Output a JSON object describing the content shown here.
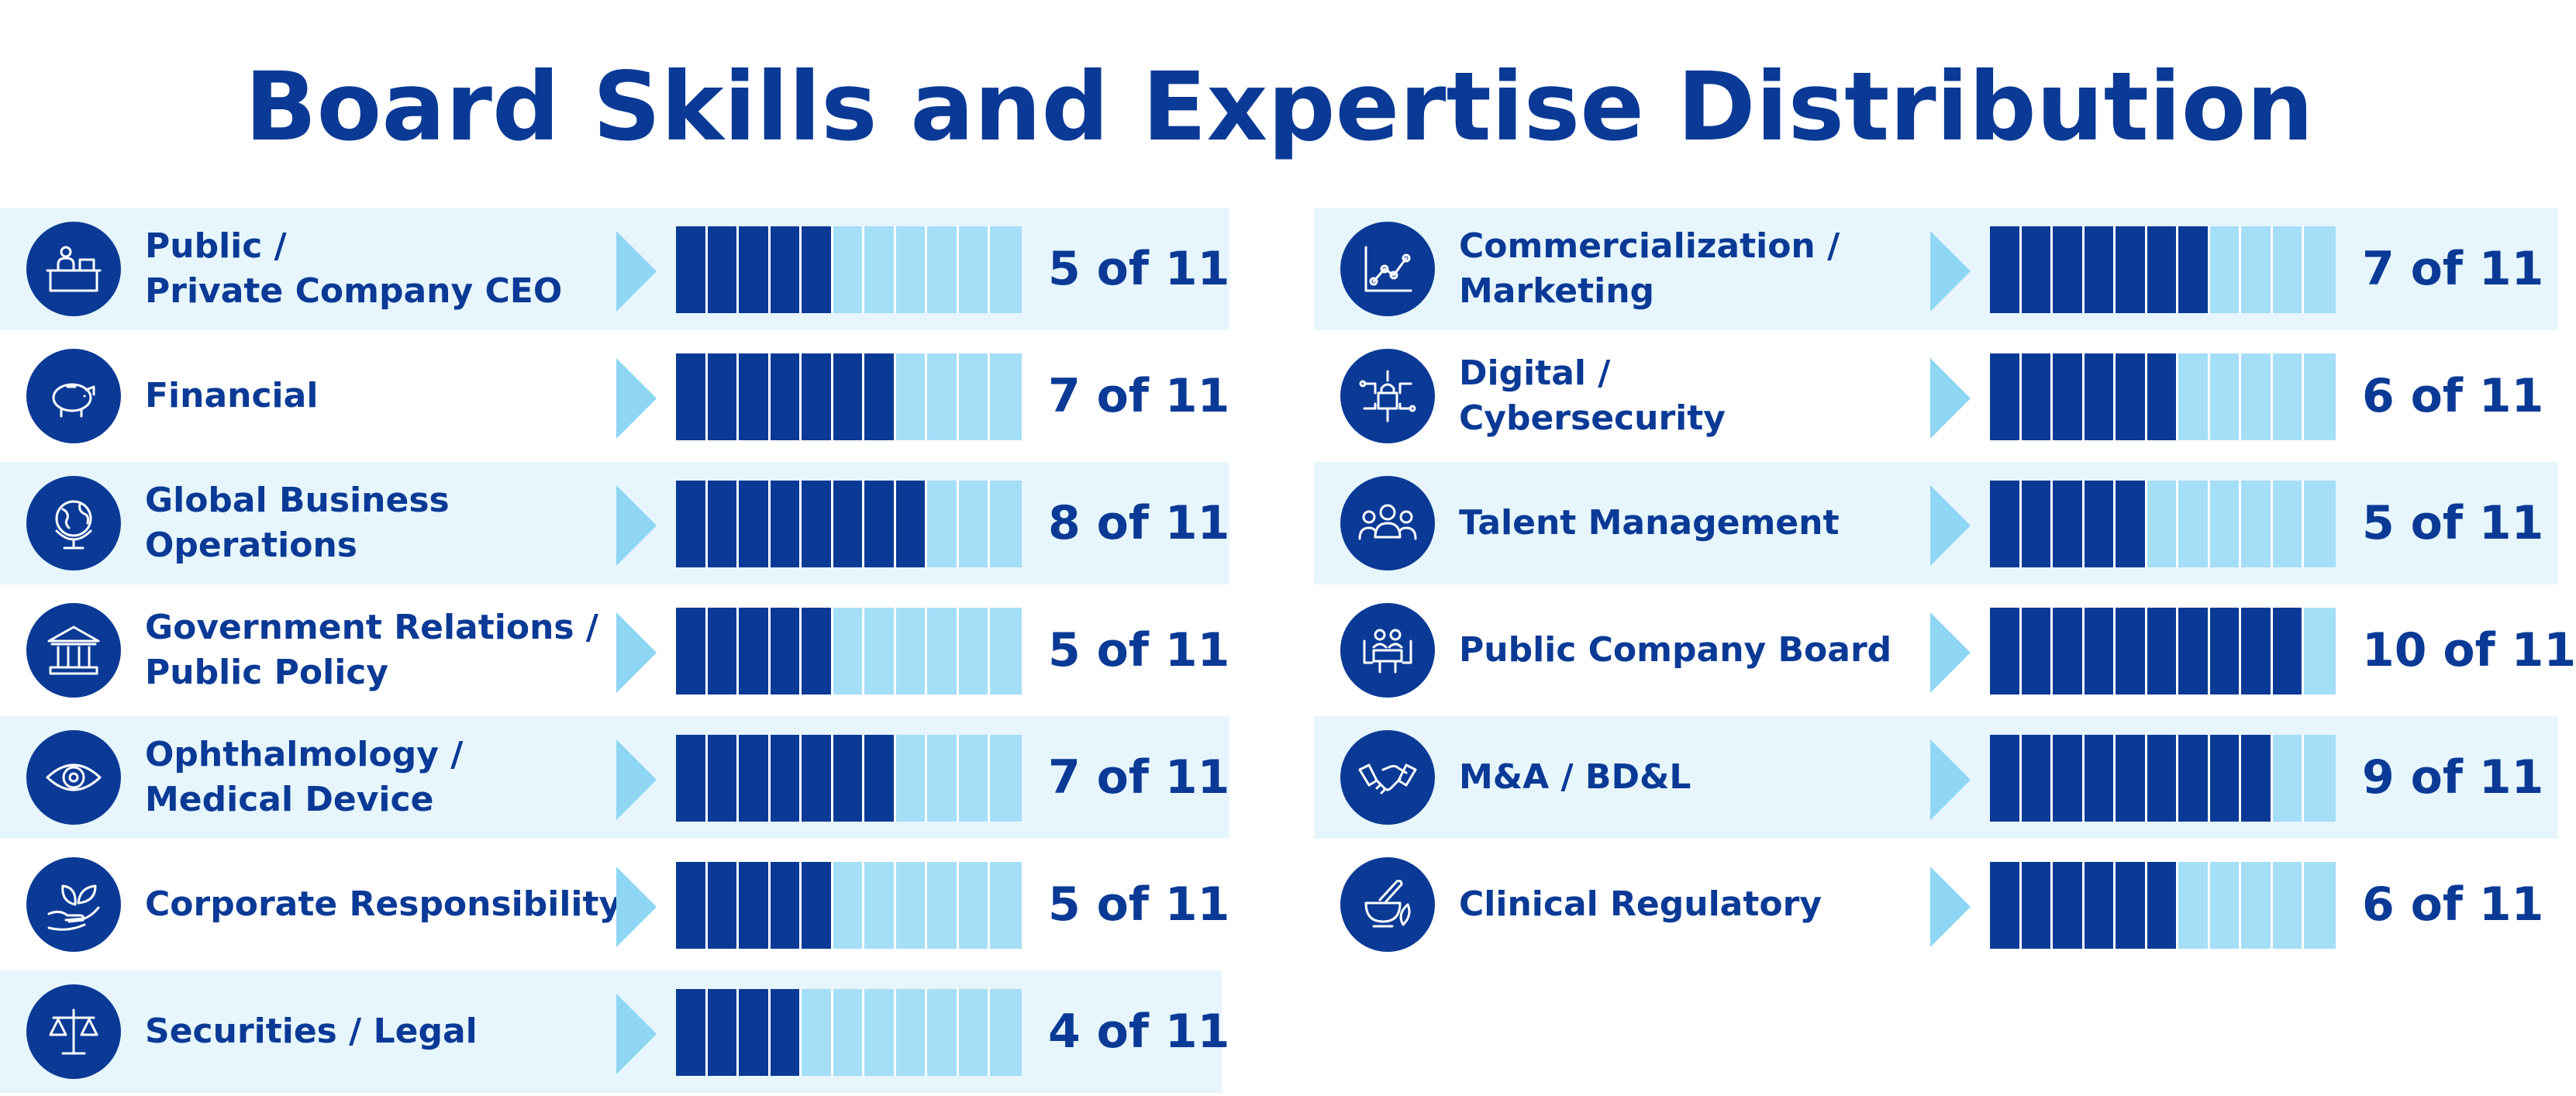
{
  "title": "Board Skills and Expertise Distribution",
  "colors": {
    "primary": "#0a3a96",
    "light_bar": "#a5def7",
    "row_bg": "#e7f6fd",
    "arrow": "#8fd6f5"
  },
  "chart_data": {
    "type": "bar",
    "total": 11,
    "columns": [
      [
        {
          "label_lines": [
            "Public /",
            "Private Company CEO"
          ],
          "value": 5,
          "count_text": "5 of 11",
          "icon": "desk-icon"
        },
        {
          "label_lines": [
            "Financial"
          ],
          "value": 7,
          "count_text": "7 of 11",
          "icon": "piggy-bank-icon"
        },
        {
          "label_lines": [
            "Global Business",
            "Operations"
          ],
          "value": 8,
          "count_text": "8 of 11",
          "icon": "globe-icon"
        },
        {
          "label_lines": [
            "Government Relations /",
            "Public Policy"
          ],
          "value": 5,
          "count_text": "5 of 11",
          "icon": "government-building-icon"
        },
        {
          "label_lines": [
            "Ophthalmology /",
            "Medical Device"
          ],
          "value": 7,
          "count_text": "7 of 11",
          "icon": "eye-icon"
        },
        {
          "label_lines": [
            "Corporate Responsibility"
          ],
          "value": 5,
          "count_text": "5 of 11",
          "icon": "hand-leaf-icon"
        },
        {
          "label_lines": [
            "Securities / Legal"
          ],
          "value": 4,
          "count_text": "4 of 11",
          "icon": "scales-icon"
        }
      ],
      [
        {
          "label_lines": [
            "Commercialization /",
            "Marketing"
          ],
          "value": 7,
          "count_text": "7 of 11",
          "icon": "line-chart-icon"
        },
        {
          "label_lines": [
            "Digital /",
            "Cybersecurity"
          ],
          "value": 6,
          "count_text": "6 of 11",
          "icon": "lock-circuit-icon"
        },
        {
          "label_lines": [
            "Talent Management"
          ],
          "value": 5,
          "count_text": "5 of 11",
          "icon": "people-group-icon"
        },
        {
          "label_lines": [
            "Public Company Board"
          ],
          "value": 10,
          "count_text": "10 of 11",
          "icon": "boardroom-table-icon"
        },
        {
          "label_lines": [
            "M&A / BD&L"
          ],
          "value": 9,
          "count_text": "9 of 11",
          "icon": "handshake-icon"
        },
        {
          "label_lines": [
            "Clinical Regulatory"
          ],
          "value": 6,
          "count_text": "6 of 11",
          "icon": "mortar-pestle-icon"
        }
      ]
    ]
  }
}
